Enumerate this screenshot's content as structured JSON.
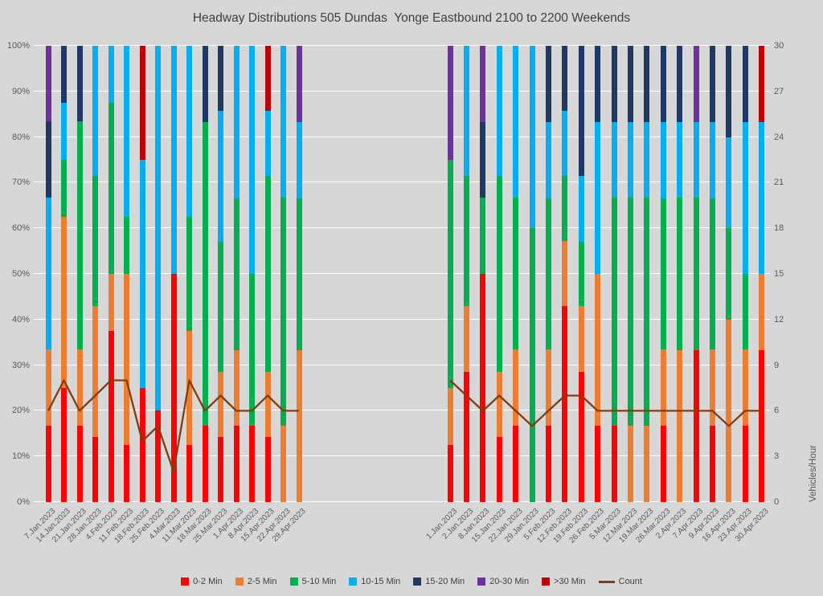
{
  "chart_data": {
    "type": "bar",
    "subtype": "100-percent-stacked-columns-with-count-line",
    "title": "Headway Distributions 505 Dundas  Yonge Eastbound 2100 to 2200 Weekends",
    "ylabel_right": "Vehicles/Hour",
    "y_left_ticks": [
      "0%",
      "10%",
      "20%",
      "30%",
      "40%",
      "50%",
      "60%",
      "70%",
      "80%",
      "90%",
      "100%"
    ],
    "y_right_ticks": [
      "0",
      "3",
      "6",
      "9",
      "12",
      "15",
      "18",
      "21",
      "24",
      "27",
      "30"
    ],
    "y_right_range": [
      0,
      30
    ],
    "grid": true,
    "legend_position": "bottom",
    "series_names": [
      "0-2 Min",
      "2-5 Min",
      "5-10 Min",
      "10-15 Min",
      "15-20 Min",
      "20-30 Min",
      ">30 Min"
    ],
    "series_colors": [
      "#FF0000",
      "#ED7D31",
      "#00B050",
      "#00B0F0",
      "#1F3864",
      "#7030A0",
      "#C00000"
    ],
    "count_series": {
      "name": "Count",
      "color": "#843C0C"
    },
    "groups": [
      {
        "name": "group1",
        "categories": [
          "7.Jan.2023",
          "14.Jan.2023",
          "21.Jan.2023",
          "28.Jan.2023",
          "4.Feb.2023",
          "11.Feb.2023",
          "18.Feb.2023",
          "25.Feb.2023",
          "4.Mar.2023",
          "11.Mar.2023",
          "18.Mar.2023",
          "25.Mar.2023",
          "1.Apr.2023",
          "8.Apr.2023",
          "15.Apr.2023",
          "22.Apr.2023",
          "29.Apr.2023"
        ],
        "stacks_pct": [
          [
            16.7,
            16.7,
            0,
            33.3,
            16.7,
            16.6,
            0
          ],
          [
            25,
            37.5,
            12.5,
            12.5,
            12.5,
            0,
            0
          ],
          [
            16.7,
            16.7,
            50,
            0,
            16.6,
            0,
            0
          ],
          [
            14.3,
            28.6,
            28.5,
            28.6,
            0,
            0,
            0
          ],
          [
            37.5,
            12.5,
            37.5,
            12.5,
            0,
            0,
            0
          ],
          [
            12.5,
            37.5,
            12.5,
            37.5,
            0,
            0,
            0
          ],
          [
            25,
            0,
            0,
            50,
            0,
            0,
            25
          ],
          [
            20,
            0,
            0,
            80,
            0,
            0,
            0
          ],
          [
            50,
            0,
            0,
            50,
            0,
            0,
            0
          ],
          [
            12.5,
            25,
            25,
            37.5,
            0,
            0,
            0
          ],
          [
            16.7,
            0,
            66.6,
            0,
            16.7,
            0,
            0
          ],
          [
            14.3,
            14.3,
            28.5,
            28.6,
            14.3,
            0,
            0
          ],
          [
            16.7,
            16.6,
            33.3,
            33.4,
            0,
            0,
            0
          ],
          [
            16.7,
            0,
            33.3,
            50,
            0,
            0,
            0
          ],
          [
            14.3,
            14.3,
            42.8,
            14.3,
            0,
            0,
            14.3
          ],
          [
            0,
            16.7,
            50,
            33.3,
            0,
            0,
            0
          ],
          [
            0,
            33.3,
            33.3,
            16.7,
            0,
            16.7,
            0
          ]
        ],
        "count_vehicles_per_hour": [
          6,
          8,
          6,
          7,
          8,
          8,
          4,
          5,
          2,
          8,
          6,
          7,
          6,
          6,
          7,
          6,
          6
        ]
      },
      {
        "name": "group2",
        "categories": [
          "1.Jan.2023",
          "2.Jan.2023",
          "8.Jan.2023",
          "15.Jan.2023",
          "22.Jan.2023",
          "29.Jan.2023",
          "5.Feb.2023",
          "12.Feb.2023",
          "19.Feb.2023",
          "26.Feb.2023",
          "5.Mar.2023",
          "12.Mar.2023",
          "19.Mar.2023",
          "26.Mar.2023",
          "2.Apr.2023",
          "7.Apr.2023",
          "9.Apr.2023",
          "16.Apr.2023",
          "23.Apr.2023",
          "30.Apr.2023"
        ],
        "stacks_pct": [
          [
            12.5,
            12.5,
            50,
            0,
            0,
            25,
            0
          ],
          [
            28.6,
            14.3,
            28.5,
            28.6,
            0,
            0,
            0
          ],
          [
            50,
            0,
            16.7,
            0,
            16.6,
            16.7,
            0
          ],
          [
            14.3,
            14.3,
            42.8,
            28.6,
            0,
            0,
            0
          ],
          [
            16.7,
            16.7,
            33.3,
            33.3,
            0,
            0,
            0
          ],
          [
            0,
            0,
            60,
            40,
            0,
            0,
            0
          ],
          [
            16.7,
            16.7,
            33.2,
            16.7,
            16.7,
            0,
            0
          ],
          [
            42.9,
            14.3,
            14.2,
            14.3,
            14.3,
            0,
            0
          ],
          [
            28.6,
            14.3,
            14.2,
            14.3,
            28.6,
            0,
            0
          ],
          [
            16.7,
            33.3,
            0,
            33.3,
            16.7,
            0,
            0
          ],
          [
            16.7,
            0,
            50,
            16.6,
            16.7,
            0,
            0
          ],
          [
            0,
            16.7,
            50,
            16.6,
            16.7,
            0,
            0
          ],
          [
            0,
            16.7,
            50,
            16.6,
            16.7,
            0,
            0
          ],
          [
            16.7,
            16.7,
            33.2,
            16.7,
            16.7,
            0,
            0
          ],
          [
            0,
            33.3,
            33.4,
            16.6,
            16.7,
            0,
            0
          ],
          [
            33.3,
            0,
            33.4,
            16.6,
            0,
            16.7,
            0
          ],
          [
            16.7,
            16.7,
            33.2,
            16.7,
            16.7,
            0,
            0
          ],
          [
            0,
            40,
            20,
            20,
            20,
            0,
            0
          ],
          [
            16.7,
            16.7,
            16.6,
            33.3,
            16.7,
            0,
            0
          ],
          [
            33.3,
            16.7,
            0,
            33.3,
            0,
            0,
            16.7
          ]
        ],
        "count_vehicles_per_hour": [
          8,
          7,
          6,
          7,
          6,
          5,
          6,
          7,
          7,
          6,
          6,
          6,
          6,
          6,
          6,
          6,
          6,
          5,
          6,
          6
        ]
      }
    ]
  }
}
